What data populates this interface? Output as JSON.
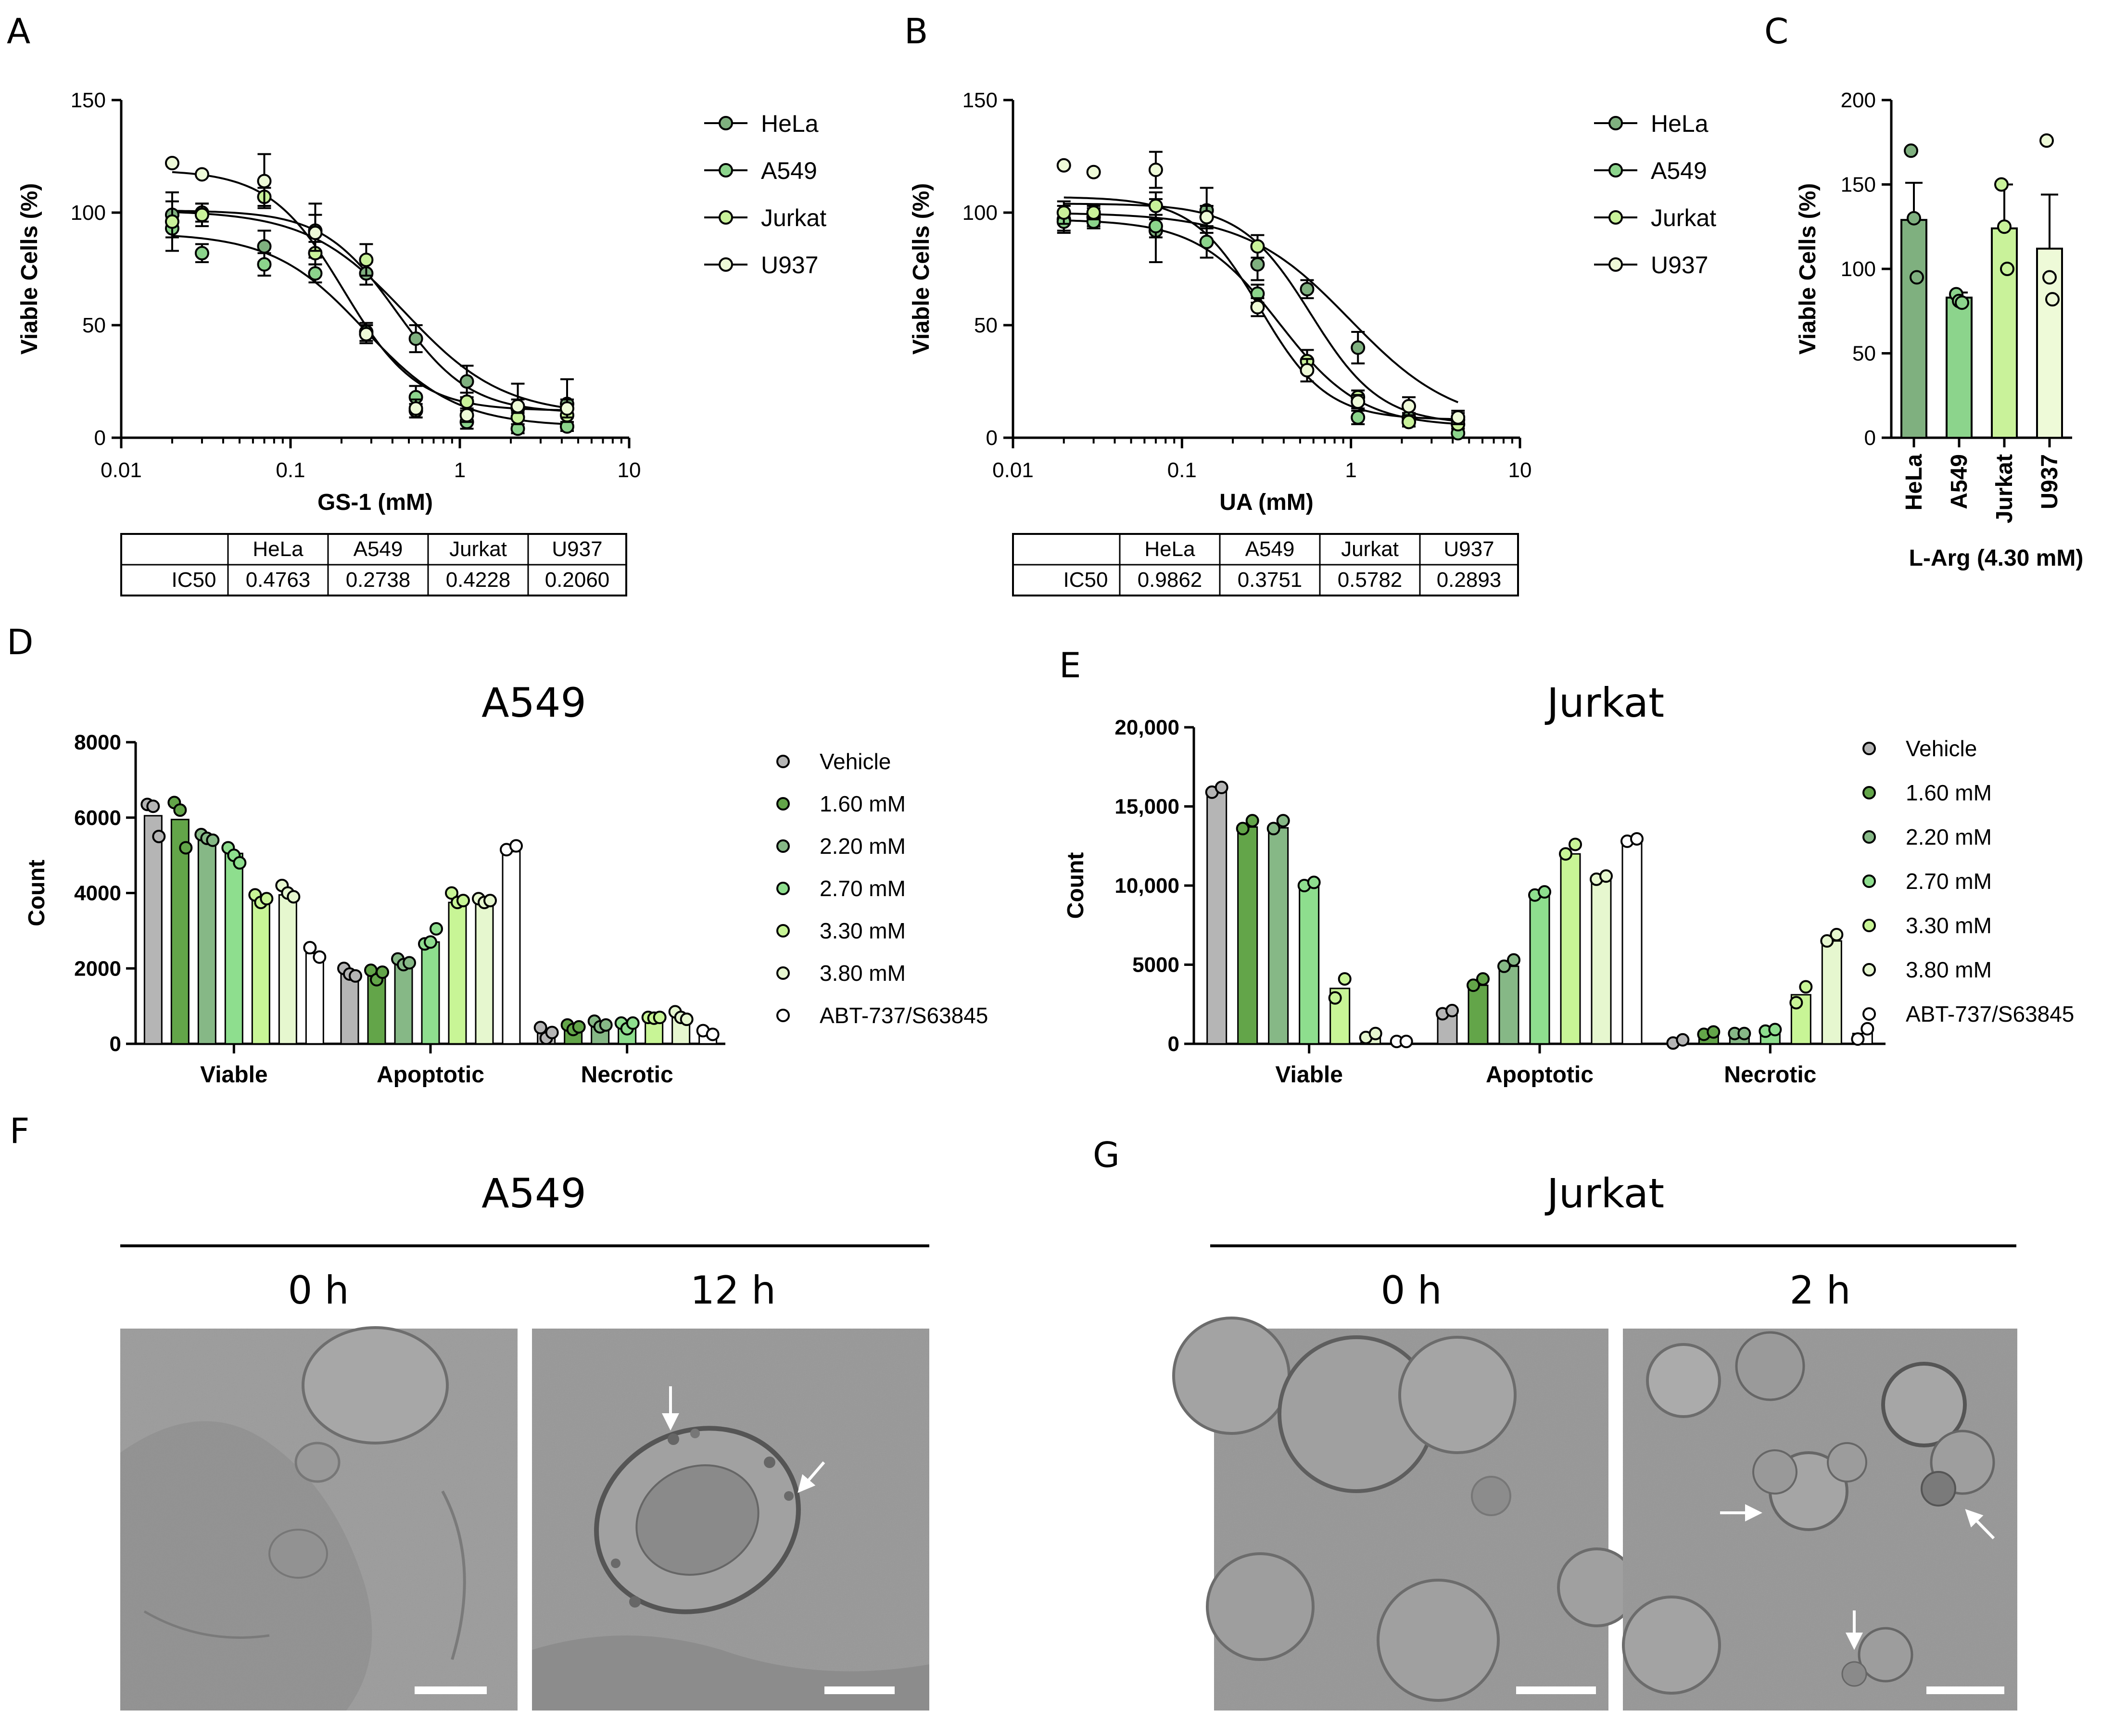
{
  "panel_letters": {
    "A": "A",
    "B": "B",
    "C": "C",
    "D": "D",
    "E": "E",
    "F": "F",
    "G": "G"
  },
  "colors": {
    "HeLa": "#7fb07f",
    "A549": "#8cd48c",
    "Jurkat": "#c9f29a",
    "U937": "#eefad8",
    "Vehicle": "#b5b5b5",
    "c160": "#63a549",
    "c220": "#86b886",
    "c270": "#8ede8e",
    "c330": "#c8f596",
    "c380": "#e6f7cf",
    "ABT": "#ffffff"
  },
  "chart_data": [
    {
      "id": "A",
      "type": "scatter",
      "subtype": "dose-response",
      "xlabel": "GS-1 (mM)",
      "ylabel": "Viable Cells (%)",
      "xscale": "log",
      "xlim": [
        0.01,
        10
      ],
      "ylim": [
        0,
        150
      ],
      "xticks": [
        "0.01",
        "0.1",
        "1",
        "10"
      ],
      "yticks": [
        "0",
        "50",
        "100",
        "150"
      ],
      "series": [
        {
          "name": "HeLa",
          "x": [
            0.02,
            0.03,
            0.07,
            0.14,
            0.28,
            0.55,
            1.1,
            2.2,
            4.3
          ],
          "y": [
            99,
            100,
            85,
            92,
            73,
            44,
            25,
            13,
            15
          ],
          "err": [
            6,
            4,
            7,
            12,
            5,
            6,
            7,
            11,
            11
          ],
          "fit": {
            "top": 101,
            "bottom": 10,
            "ic50": 0.4763,
            "hill": 1.5
          }
        },
        {
          "name": "A549",
          "x": [
            0.02,
            0.03,
            0.07,
            0.14,
            0.28,
            0.55,
            1.1,
            2.2,
            4.3
          ],
          "y": [
            93,
            82,
            77,
            73,
            47,
            18,
            7,
            4,
            5
          ],
          "err": [
            4,
            4,
            5,
            4,
            4,
            5,
            3,
            2,
            2
          ],
          "fit": {
            "top": 91,
            "bottom": 5,
            "ic50": 0.2738,
            "hill": 1.6
          }
        },
        {
          "name": "Jurkat",
          "x": [
            0.02,
            0.03,
            0.07,
            0.14,
            0.28,
            0.55,
            1.1,
            2.2,
            4.3
          ],
          "y": [
            96,
            99,
            107,
            82,
            79,
            12,
            16,
            9,
            10
          ],
          "err": [
            13,
            5,
            4,
            5,
            7,
            3,
            4,
            3,
            3
          ],
          "fit": {
            "top": 101,
            "bottom": 11,
            "ic50": 0.4228,
            "hill": 2.0
          }
        },
        {
          "name": "U937",
          "x": [
            0.02,
            0.03,
            0.07,
            0.14,
            0.28,
            0.55,
            1.1,
            2.2,
            4.3
          ],
          "y": [
            122,
            117,
            114,
            91,
            46,
            13,
            10,
            14,
            13
          ],
          "err": [
            0,
            0,
            12,
            8,
            4,
            4,
            3,
            3,
            4
          ],
          "fit": {
            "top": 119,
            "bottom": 12,
            "ic50": 0.206,
            "hill": 2.0
          }
        }
      ],
      "table": {
        "headers": [
          "",
          "HeLa",
          "A549",
          "Jurkat",
          "U937"
        ],
        "row": [
          "IC50",
          "0.4763",
          "0.2738",
          "0.4228",
          "0.2060"
        ]
      }
    },
    {
      "id": "B",
      "type": "scatter",
      "subtype": "dose-response",
      "xlabel": "UA (mM)",
      "ylabel": "Viable Cells (%)",
      "xscale": "log",
      "xlim": [
        0.01,
        10
      ],
      "ylim": [
        0,
        150
      ],
      "xticks": [
        "0.01",
        "0.1",
        "1",
        "10"
      ],
      "yticks": [
        "0",
        "50",
        "100",
        "150"
      ],
      "series": [
        {
          "name": "HeLa",
          "x": [
            0.02,
            0.03,
            0.07,
            0.14,
            0.28,
            0.55,
            1.1,
            2.2,
            4.3
          ],
          "y": [
            97,
            98,
            92,
            101,
            77,
            66,
            40,
            9,
            8
          ],
          "err": [
            6,
            4,
            14,
            10,
            7,
            4,
            7,
            2,
            3
          ],
          "fit": {
            "top": 100,
            "bottom": 5,
            "ic50": 0.9862,
            "hill": 1.4
          }
        },
        {
          "name": "A549",
          "x": [
            0.02,
            0.03,
            0.07,
            0.14,
            0.28,
            0.55,
            1.1,
            2.2,
            4.3
          ],
          "y": [
            96,
            96,
            94,
            87,
            64,
            34,
            9,
            7,
            2
          ],
          "err": [
            4,
            3,
            5,
            7,
            4,
            5,
            3,
            2,
            2
          ],
          "fit": {
            "top": 97,
            "bottom": 5,
            "ic50": 0.3751,
            "hill": 1.8
          }
        },
        {
          "name": "Jurkat",
          "x": [
            0.02,
            0.03,
            0.07,
            0.14,
            0.28,
            0.55,
            1.1,
            2.2,
            4.3
          ],
          "y": [
            100,
            100,
            103,
            98,
            85,
            34,
            18,
            7,
            6
          ],
          "err": [
            5,
            3,
            6,
            5,
            5,
            5,
            3,
            2,
            2
          ],
          "fit": {
            "top": 104,
            "bottom": 6,
            "ic50": 0.5782,
            "hill": 2.1
          }
        },
        {
          "name": "U937",
          "x": [
            0.02,
            0.03,
            0.07,
            0.14,
            0.28,
            0.55,
            1.1,
            2.2,
            4.3
          ],
          "y": [
            121,
            118,
            119,
            98,
            58,
            30,
            16,
            14,
            9
          ],
          "err": [
            0,
            0,
            8,
            5,
            4,
            5,
            3,
            4,
            3
          ],
          "fit": {
            "top": 107,
            "bottom": 8,
            "ic50": 0.2893,
            "hill": 2.2
          }
        }
      ],
      "table": {
        "headers": [
          "",
          "HeLa",
          "A549",
          "Jurkat",
          "U937"
        ],
        "row": [
          "IC50",
          "0.9862",
          "0.3751",
          "0.5782",
          "0.2893"
        ]
      }
    },
    {
      "id": "C",
      "type": "bar",
      "xlabel": "L-Arg (4.30 mM)",
      "ylabel": "Viable Cells (%)",
      "ylim": [
        0,
        200
      ],
      "yticks": [
        "0",
        "50",
        "100",
        "150",
        "200"
      ],
      "categories": [
        "HeLa",
        "A549",
        "Jurkat",
        "U937"
      ],
      "values": [
        129,
        83,
        124,
        112
      ],
      "err": [
        22,
        3,
        26,
        32
      ],
      "points": [
        [
          170,
          130,
          95
        ],
        [
          85,
          81,
          80
        ],
        [
          150,
          125,
          100
        ],
        [
          176,
          95,
          82
        ]
      ]
    },
    {
      "id": "D",
      "type": "bar",
      "title": "A549",
      "xlabel": "",
      "ylabel": "Count",
      "ylim": [
        0,
        8000
      ],
      "yticks": [
        "0",
        "2000",
        "4000",
        "6000",
        "8000"
      ],
      "groups": [
        "Viable",
        "Apoptotic",
        "Necrotic"
      ],
      "series": [
        {
          "name": "Vehicle",
          "values": [
            6050,
            1870,
            280
          ],
          "points": [
            [
              6350,
              6300,
              5500
            ],
            [
              2000,
              1850,
              1800
            ],
            [
              430,
              150,
              300
            ]
          ]
        },
        {
          "name": "1.60 mM",
          "values": [
            5950,
            1850,
            430
          ],
          "points": [
            [
              6400,
              6200,
              5200
            ],
            [
              1950,
              1700,
              1900
            ],
            [
              500,
              380,
              450
            ]
          ]
        },
        {
          "name": "2.20 mM",
          "values": [
            5450,
            2150,
            500
          ],
          "points": [
            [
              5550,
              5450,
              5400
            ],
            [
              2250,
              2100,
              2150
            ],
            [
              600,
              450,
              500
            ]
          ]
        },
        {
          "name": "2.70 mM",
          "values": [
            5050,
            2700,
            500
          ],
          "points": [
            [
              5200,
              5000,
              4800
            ],
            [
              2650,
              2700,
              3050
            ],
            [
              550,
              400,
              550
            ]
          ]
        },
        {
          "name": "3.30 mM",
          "values": [
            3900,
            3750,
            650
          ],
          "points": [
            [
              3950,
              3750,
              3850
            ],
            [
              4000,
              3750,
              3800
            ],
            [
              700,
              680,
              700
            ]
          ]
        },
        {
          "name": "3.80 mM",
          "values": [
            3950,
            3780,
            700
          ],
          "points": [
            [
              4200,
              4000,
              3900
            ],
            [
              3850,
              3750,
              3800
            ],
            [
              850,
              700,
              650
            ]
          ]
        },
        {
          "name": "ABT-737/S63845",
          "values": [
            2400,
            5100,
            260
          ],
          "points": [
            [
              2550,
              2300
            ],
            [
              5150,
              5250
            ],
            [
              350,
              250
            ]
          ]
        }
      ]
    },
    {
      "id": "E",
      "type": "bar",
      "title": "Jurkat",
      "xlabel": "",
      "ylabel": "Count",
      "ylim": [
        0,
        20000
      ],
      "yticks": [
        "0",
        "5000",
        "10,000",
        "15,000",
        "20,000"
      ],
      "groups": [
        "Viable",
        "Apoptotic",
        "Necrotic"
      ],
      "series": [
        {
          "name": "Vehicle",
          "values": [
            16000,
            2000,
            150
          ],
          "points": [
            [
              15900,
              16200
            ],
            [
              1900,
              2100
            ],
            [
              50,
              250
            ]
          ]
        },
        {
          "name": "1.60 mM",
          "values": [
            13700,
            3700,
            650
          ],
          "points": [
            [
              13600,
              14100
            ],
            [
              3700,
              4100
            ],
            [
              600,
              750
            ]
          ]
        },
        {
          "name": "2.20 mM",
          "values": [
            13650,
            4900,
            650
          ],
          "points": [
            [
              13600,
              14100
            ],
            [
              4900,
              5300
            ],
            [
              650,
              650
            ]
          ]
        },
        {
          "name": "2.70 mM",
          "values": [
            10000,
            9400,
            850
          ],
          "points": [
            [
              10000,
              10200
            ],
            [
              9400,
              9600
            ],
            [
              800,
              900
            ]
          ]
        },
        {
          "name": "3.30 mM",
          "values": [
            3500,
            12000,
            3100
          ],
          "points": [
            [
              2900,
              4100
            ],
            [
              12000,
              12600
            ],
            [
              2600,
              3600
            ]
          ]
        },
        {
          "name": "3.80 mM",
          "values": [
            450,
            10500,
            6500
          ],
          "points": [
            [
              400,
              650
            ],
            [
              10400,
              10600
            ],
            [
              6500,
              6900
            ]
          ]
        },
        {
          "name": "ABT-737/S63845",
          "values": [
            150,
            12800,
            650
          ],
          "points": [
            [
              150,
              150
            ],
            [
              12800,
              12950
            ],
            [
              300,
              950
            ]
          ]
        }
      ]
    }
  ],
  "micrographs": {
    "F": {
      "title": "A549",
      "times": [
        "0 h",
        "12 h"
      ]
    },
    "G": {
      "title": "Jurkat",
      "times": [
        "0 h",
        "2 h"
      ]
    }
  }
}
